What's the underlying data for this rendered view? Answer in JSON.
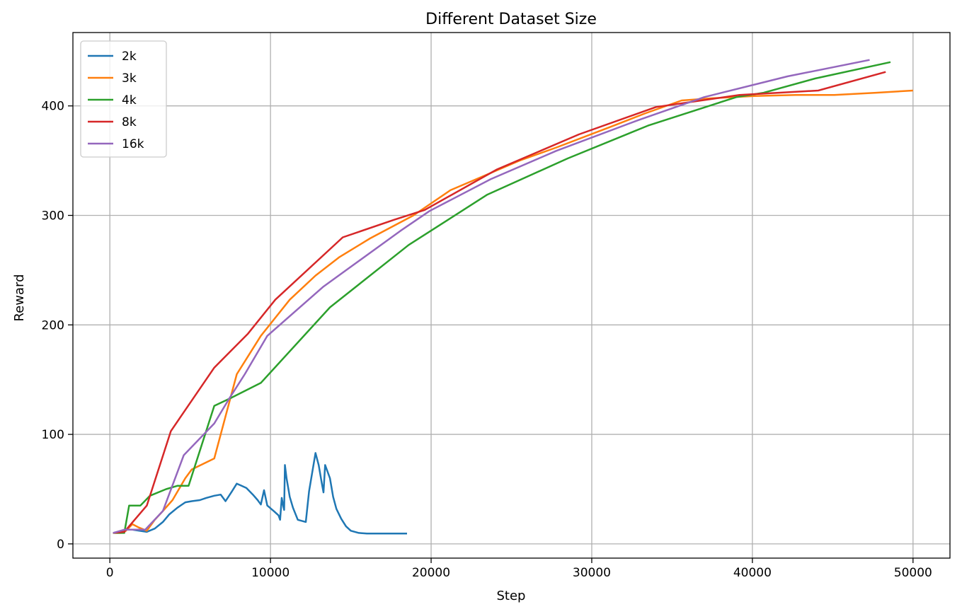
{
  "chart_data": {
    "type": "line",
    "title": "Different Dataset Size",
    "xlabel": "Step",
    "ylabel": "Reward",
    "xlim": [
      -2300,
      52300
    ],
    "ylim": [
      -13,
      467
    ],
    "xticks": [
      0,
      10000,
      20000,
      30000,
      40000,
      50000
    ],
    "yticks": [
      0,
      100,
      200,
      300,
      400
    ],
    "grid": true,
    "legend_position": "top-left",
    "series": [
      {
        "name": "2k",
        "color": "#1f77b4",
        "points": [
          [
            200,
            10
          ],
          [
            700,
            11
          ],
          [
            1000,
            13
          ],
          [
            1400,
            13
          ],
          [
            2300,
            11
          ],
          [
            2800,
            14
          ],
          [
            3300,
            20
          ],
          [
            3700,
            27
          ],
          [
            4200,
            33
          ],
          [
            4700,
            38
          ],
          [
            5100,
            39
          ],
          [
            5600,
            40
          ],
          [
            6000,
            42
          ],
          [
            6500,
            44
          ],
          [
            6900,
            45
          ],
          [
            7200,
            39
          ],
          [
            7600,
            48
          ],
          [
            7900,
            55
          ],
          [
            8200,
            53
          ],
          [
            8500,
            51
          ],
          [
            8900,
            45
          ],
          [
            9200,
            40
          ],
          [
            9400,
            36
          ],
          [
            9600,
            49
          ],
          [
            9700,
            42
          ],
          [
            9800,
            35
          ],
          [
            10200,
            30
          ],
          [
            10500,
            26
          ],
          [
            10600,
            22
          ],
          [
            10700,
            42
          ],
          [
            10800,
            34
          ],
          [
            10850,
            31
          ],
          [
            10900,
            72
          ],
          [
            11000,
            60
          ],
          [
            11200,
            43
          ],
          [
            11400,
            33
          ],
          [
            11700,
            22
          ],
          [
            12200,
            20
          ],
          [
            12400,
            48
          ],
          [
            12800,
            83
          ],
          [
            13000,
            72
          ],
          [
            13200,
            55
          ],
          [
            13300,
            47
          ],
          [
            13400,
            72
          ],
          [
            13700,
            60
          ],
          [
            13900,
            43
          ],
          [
            14100,
            32
          ],
          [
            14400,
            23
          ],
          [
            14700,
            16
          ],
          [
            15000,
            12
          ],
          [
            15500,
            10
          ],
          [
            16000,
            9.5
          ],
          [
            16500,
            9.5
          ],
          [
            17000,
            9.5
          ],
          [
            17500,
            9.5
          ],
          [
            18000,
            9.5
          ],
          [
            18500,
            9.5
          ]
        ]
      },
      {
        "name": "3k",
        "color": "#ff7f0e",
        "points": [
          [
            200,
            10
          ],
          [
            700,
            10
          ],
          [
            1000,
            12
          ],
          [
            1400,
            18
          ],
          [
            1800,
            15
          ],
          [
            2300,
            12
          ],
          [
            2800,
            22
          ],
          [
            3300,
            30
          ],
          [
            3900,
            40
          ],
          [
            4700,
            60
          ],
          [
            5100,
            68
          ],
          [
            6500,
            78
          ],
          [
            7900,
            155
          ],
          [
            9400,
            190
          ],
          [
            11200,
            223
          ],
          [
            12800,
            245
          ],
          [
            14300,
            262
          ],
          [
            16200,
            279
          ],
          [
            18900,
            300
          ],
          [
            21200,
            323
          ],
          [
            22800,
            333
          ],
          [
            25500,
            350
          ],
          [
            27800,
            362
          ],
          [
            31200,
            381
          ],
          [
            33300,
            393
          ],
          [
            35600,
            405
          ],
          [
            37500,
            407
          ],
          [
            40100,
            409
          ],
          [
            42700,
            410
          ],
          [
            45100,
            410
          ],
          [
            47700,
            412
          ],
          [
            50000,
            414
          ]
        ]
      },
      {
        "name": "4k",
        "color": "#2ca02c",
        "points": [
          [
            200,
            10
          ],
          [
            900,
            10
          ],
          [
            1200,
            35
          ],
          [
            1900,
            35
          ],
          [
            2500,
            44
          ],
          [
            3500,
            50
          ],
          [
            4200,
            53
          ],
          [
            4900,
            53
          ],
          [
            6500,
            126
          ],
          [
            7500,
            133
          ],
          [
            9400,
            147
          ],
          [
            13700,
            216
          ],
          [
            18600,
            273
          ],
          [
            23500,
            319
          ],
          [
            28500,
            352
          ],
          [
            33500,
            382
          ],
          [
            39000,
            408
          ],
          [
            40700,
            412
          ],
          [
            43900,
            425
          ],
          [
            48600,
            440
          ]
        ]
      },
      {
        "name": "8k",
        "color": "#d62728",
        "points": [
          [
            200,
            10
          ],
          [
            900,
            11
          ],
          [
            2300,
            35
          ],
          [
            3800,
            103
          ],
          [
            6500,
            161
          ],
          [
            8600,
            192
          ],
          [
            10300,
            223
          ],
          [
            14500,
            280
          ],
          [
            17700,
            296
          ],
          [
            19600,
            305
          ],
          [
            24100,
            342
          ],
          [
            29200,
            374
          ],
          [
            34000,
            399
          ],
          [
            39200,
            410
          ],
          [
            44100,
            414
          ],
          [
            48300,
            431
          ]
        ]
      },
      {
        "name": "16k",
        "color": "#9467bd",
        "points": [
          [
            200,
            10
          ],
          [
            900,
            13
          ],
          [
            2200,
            13
          ],
          [
            3300,
            30
          ],
          [
            4600,
            81
          ],
          [
            6500,
            110
          ],
          [
            7400,
            132
          ],
          [
            8400,
            155
          ],
          [
            9800,
            190
          ],
          [
            13300,
            235
          ],
          [
            18100,
            286
          ],
          [
            19900,
            304
          ],
          [
            23700,
            333
          ],
          [
            27800,
            359
          ],
          [
            32900,
            387
          ],
          [
            37000,
            408
          ],
          [
            42200,
            427
          ],
          [
            47300,
            442
          ]
        ]
      }
    ]
  }
}
